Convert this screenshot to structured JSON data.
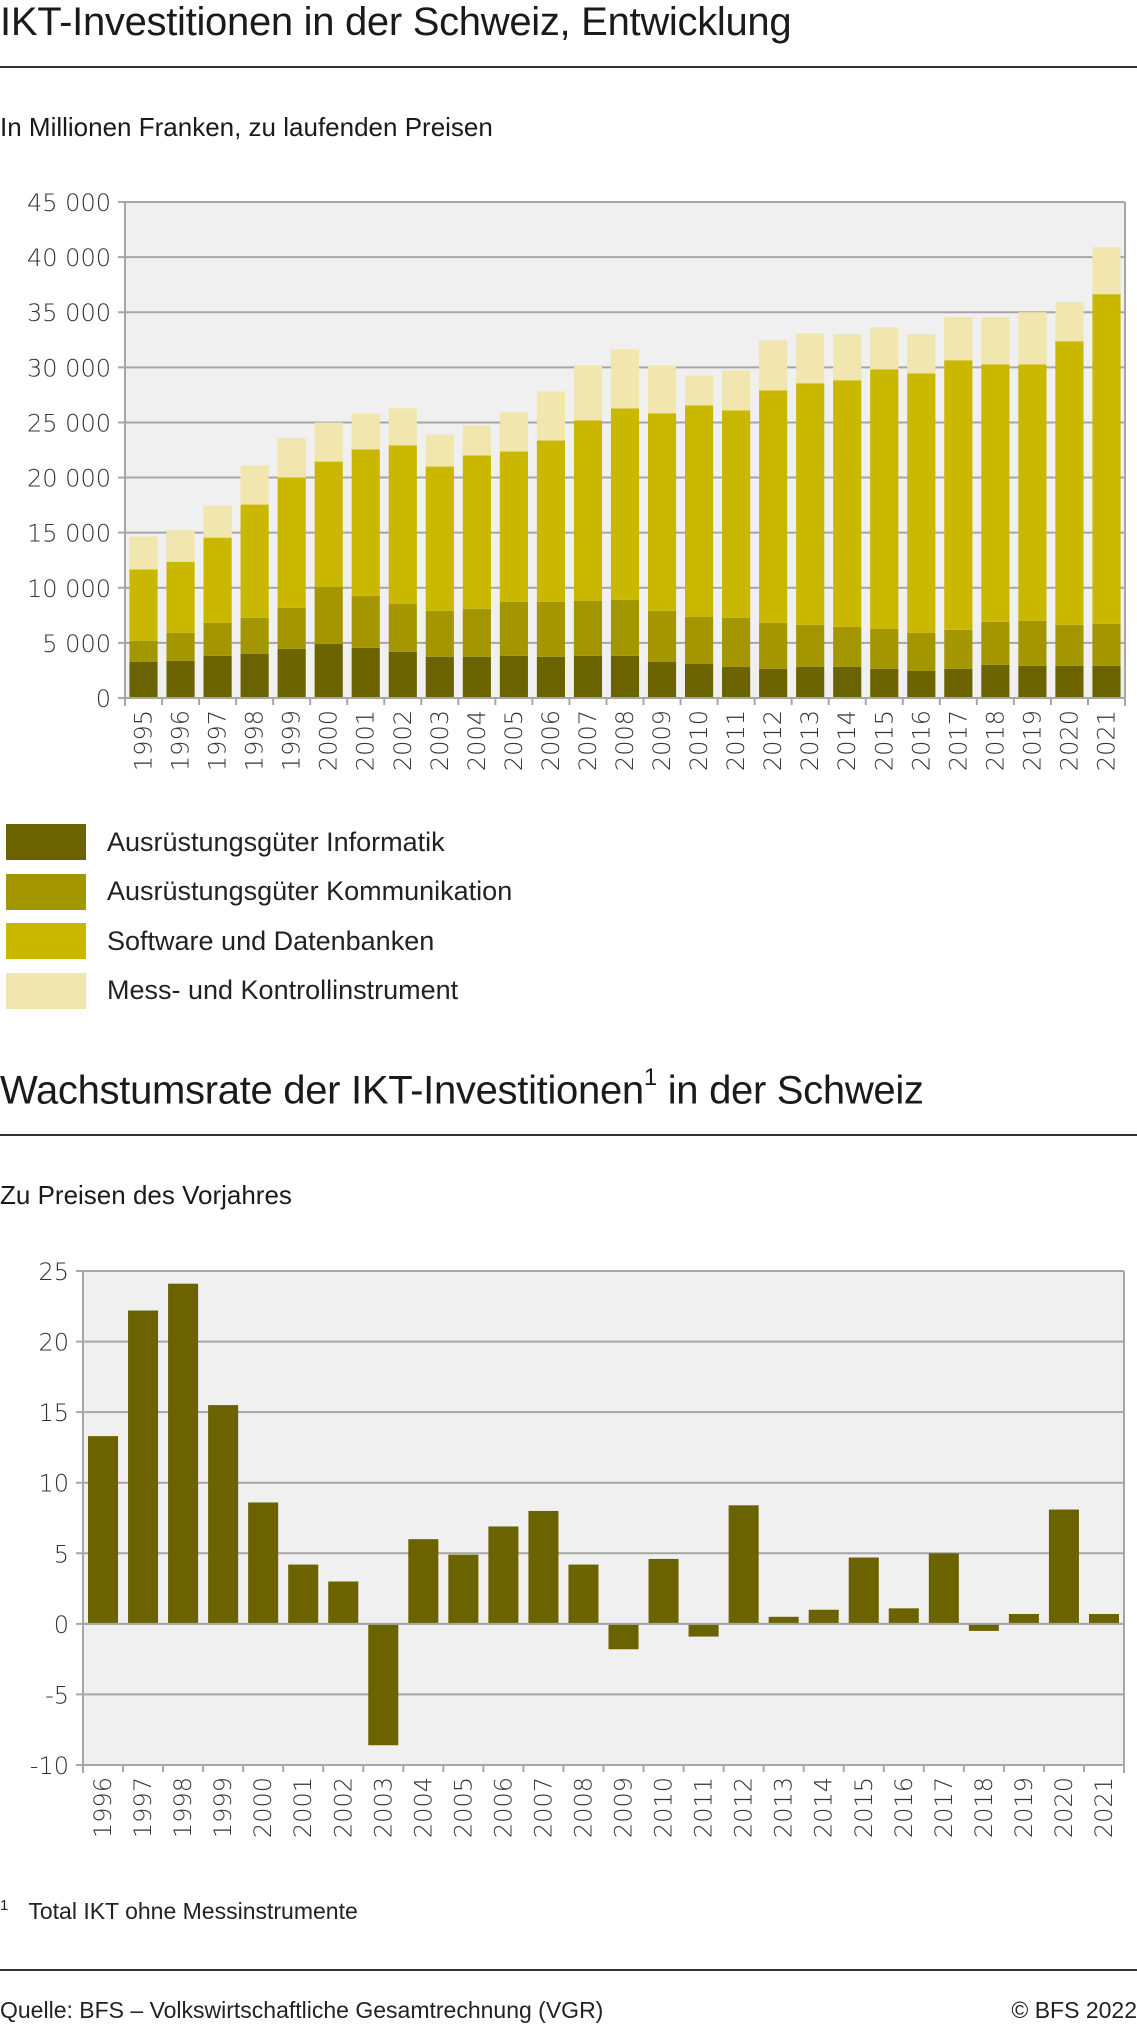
{
  "chart1": {
    "title": "IKT-Investitionen in der Schweiz, Entwicklung",
    "subtitle": "In Millionen Franken, zu laufenden Preisen"
  },
  "chart2": {
    "title_main": "Wachstumsrate der IKT-Investitionen",
    "title_sup": "1",
    "title_end": " in der Schweiz",
    "subtitle": "Zu Preisen des Vorjahres"
  },
  "footnote": {
    "number": "1",
    "text": "Total IKT ohne Messinstrumente"
  },
  "footer": {
    "source": "Quelle: BFS – Volkswirtschaftliche Gesamtrechnung (VGR)",
    "copyright": "© BFS 2022"
  },
  "chart_data": [
    {
      "type": "bar",
      "stacked": true,
      "title": "IKT-Investitionen in der Schweiz, Entwicklung",
      "subtitle": "In Millionen Franken, zu laufenden Preisen",
      "xlabel": "",
      "ylabel": "",
      "ylim": [
        0,
        45000
      ],
      "yticks": [
        0,
        5000,
        10000,
        15000,
        20000,
        25000,
        30000,
        35000,
        40000,
        45000
      ],
      "ytick_labels": [
        "0",
        "5 000",
        "10 000",
        "15 000",
        "20 000",
        "25 000",
        "30 000",
        "35 000",
        "40 000",
        "45 000"
      ],
      "grid": true,
      "legend_position": "bottom-left",
      "categories": [
        "1995",
        "1996",
        "1997",
        "1998",
        "1999",
        "2000",
        "2001",
        "2002",
        "2003",
        "2004",
        "2005",
        "2006",
        "2007",
        "2008",
        "2009",
        "2010",
        "2011",
        "2012",
        "2013",
        "2014",
        "2015",
        "2016",
        "2017",
        "2018",
        "2019",
        "2020",
        "2021"
      ],
      "series": [
        {
          "name": "Ausrüstungsgüter Informatik",
          "color": "#6a6300",
          "values": [
            3270,
            3360,
            3820,
            4000,
            4450,
            4910,
            4550,
            4180,
            3730,
            3730,
            3820,
            3730,
            3820,
            3820,
            3270,
            3090,
            2820,
            2640,
            2820,
            2820,
            2640,
            2450,
            2640,
            3000,
            2910,
            2910,
            2910
          ]
        },
        {
          "name": "Ausrüstungsgüter Kommunikation",
          "color": "#a39600",
          "values": [
            1910,
            2550,
            3000,
            3270,
            3730,
            5180,
            4720,
            4370,
            4180,
            4360,
            4910,
            5000,
            5000,
            5090,
            4640,
            4270,
            4450,
            4180,
            3820,
            3630,
            3630,
            3460,
            3540,
            3910,
            4090,
            3730,
            3820
          ]
        },
        {
          "name": "Software und Datenbanken",
          "color": "#c9b700",
          "values": [
            6490,
            6450,
            7730,
            10280,
            11820,
            11360,
            13280,
            14360,
            13090,
            13910,
            13630,
            14630,
            16360,
            17360,
            17910,
            19190,
            18820,
            21090,
            21910,
            22370,
            23550,
            23540,
            24460,
            23360,
            23270,
            25720,
            29910
          ]
        },
        {
          "name": "Mess- und Kontrollinstrument",
          "color": "#f1e6ad",
          "values": [
            2970,
            2880,
            2900,
            3540,
            3550,
            3550,
            3270,
            3360,
            2910,
            2730,
            3550,
            4460,
            5000,
            5370,
            4360,
            2720,
            3640,
            4540,
            4540,
            4180,
            3820,
            3550,
            3910,
            4280,
            4730,
            3550,
            4270
          ]
        }
      ]
    },
    {
      "type": "bar",
      "title": "Wachstumsrate der IKT-Investitionen 1 in der Schweiz",
      "subtitle": "Zu Preisen des Vorjahres",
      "xlabel": "",
      "ylabel": "",
      "ylim": [
        -10,
        25
      ],
      "yticks": [
        -10,
        -5,
        0,
        5,
        10,
        15,
        20,
        25
      ],
      "ytick_labels": [
        "-10",
        "-5",
        "0",
        "5",
        "10",
        "15",
        "20",
        "25"
      ],
      "grid": true,
      "color": "#6a6300",
      "categories": [
        "1996",
        "1997",
        "1998",
        "1999",
        "2000",
        "2001",
        "2002",
        "2003",
        "2004",
        "2005",
        "2006",
        "2007",
        "2008",
        "2009",
        "2010",
        "2011",
        "2012",
        "2013",
        "2014",
        "2015",
        "2016",
        "2017",
        "2018",
        "2019",
        "2020",
        "2021"
      ],
      "values": [
        13.3,
        22.2,
        24.1,
        15.5,
        8.6,
        4.2,
        3.0,
        -8.6,
        6.0,
        4.9,
        6.9,
        8.0,
        4.2,
        -1.8,
        4.6,
        -0.9,
        8.4,
        0.5,
        1.0,
        4.7,
        1.1,
        5.0,
        -0.5,
        0.7,
        8.1,
        0.7
      ]
    }
  ]
}
